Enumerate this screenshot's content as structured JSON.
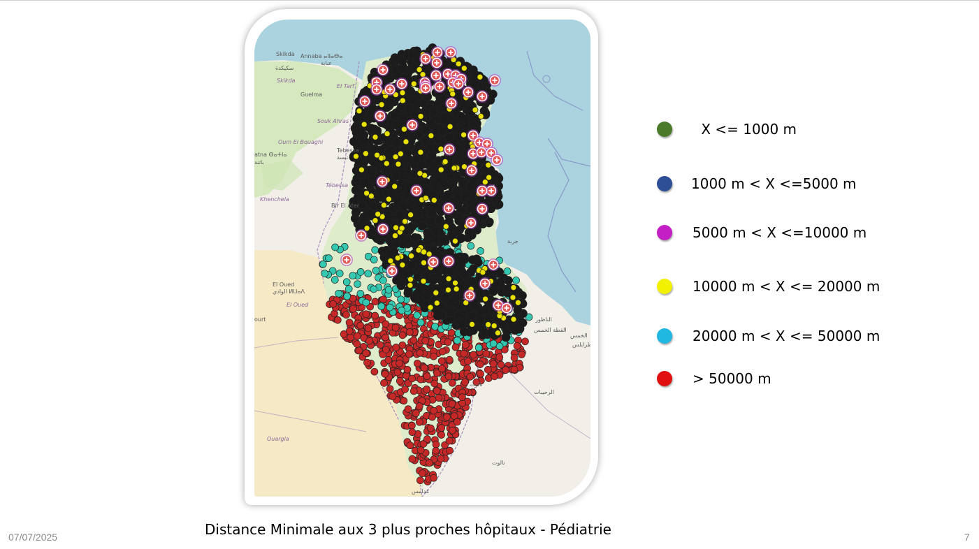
{
  "slide": {
    "caption": "Distance Minimale aux 3 plus proches hôpitaux - Pédiatrie",
    "date": "07/07/2025",
    "page_number": "7"
  },
  "legend": [
    {
      "label": " X <= 1000 m",
      "color": "#4a7a2a"
    },
    {
      "label": "1000 m < X <=5000 m",
      "color": "#2e4e96"
    },
    {
      "label": "5000 m < X <=10000 m",
      "color": "#c41fc4"
    },
    {
      "label": "10000 m < X <= 20000 m",
      "color": "#f2f200"
    },
    {
      "label": "20000 m < X <= 50000 m",
      "color": "#20b8e0"
    },
    {
      "label": "> 50000 m",
      "color": "#e01010"
    }
  ],
  "map": {
    "colors": {
      "sea": "#aad3df",
      "land": "#f2efe9",
      "desert": "#f5e9c6",
      "green": "#cde6b3",
      "dense_points": "#1b1b1b",
      "teal_points": "#35c8b0",
      "red_points": "#c62828",
      "yellow_points": "#e8e100",
      "hospital": "#e05757"
    },
    "hospital_icon": "red-cross-hospital-icon",
    "place_labels": [
      "Skikda",
      "Annaba ⴰⵏⵏⴰⴱⴰ",
      "عنابة",
      "سكيكدة",
      "Skikda",
      "Guelma",
      "El Tarf",
      "Souk Ahras",
      "Oum El Bouaghi",
      "atna ⴱⴰⵜⵏⴰ",
      "باتنة",
      "Tebessa",
      "تبسة",
      "Tébessa",
      "Khenchela",
      "Bir El Ater",
      "El Oued",
      "الوادي ⵍⵡⴰⴷ",
      "El Oued",
      "ourt",
      "Ouargla",
      "جربة",
      "الناظور",
      "القطة الخمس",
      "الخمس",
      "طرابلس",
      "نالوت",
      "الرحيبات",
      "نالوت",
      "غدامس"
    ]
  }
}
